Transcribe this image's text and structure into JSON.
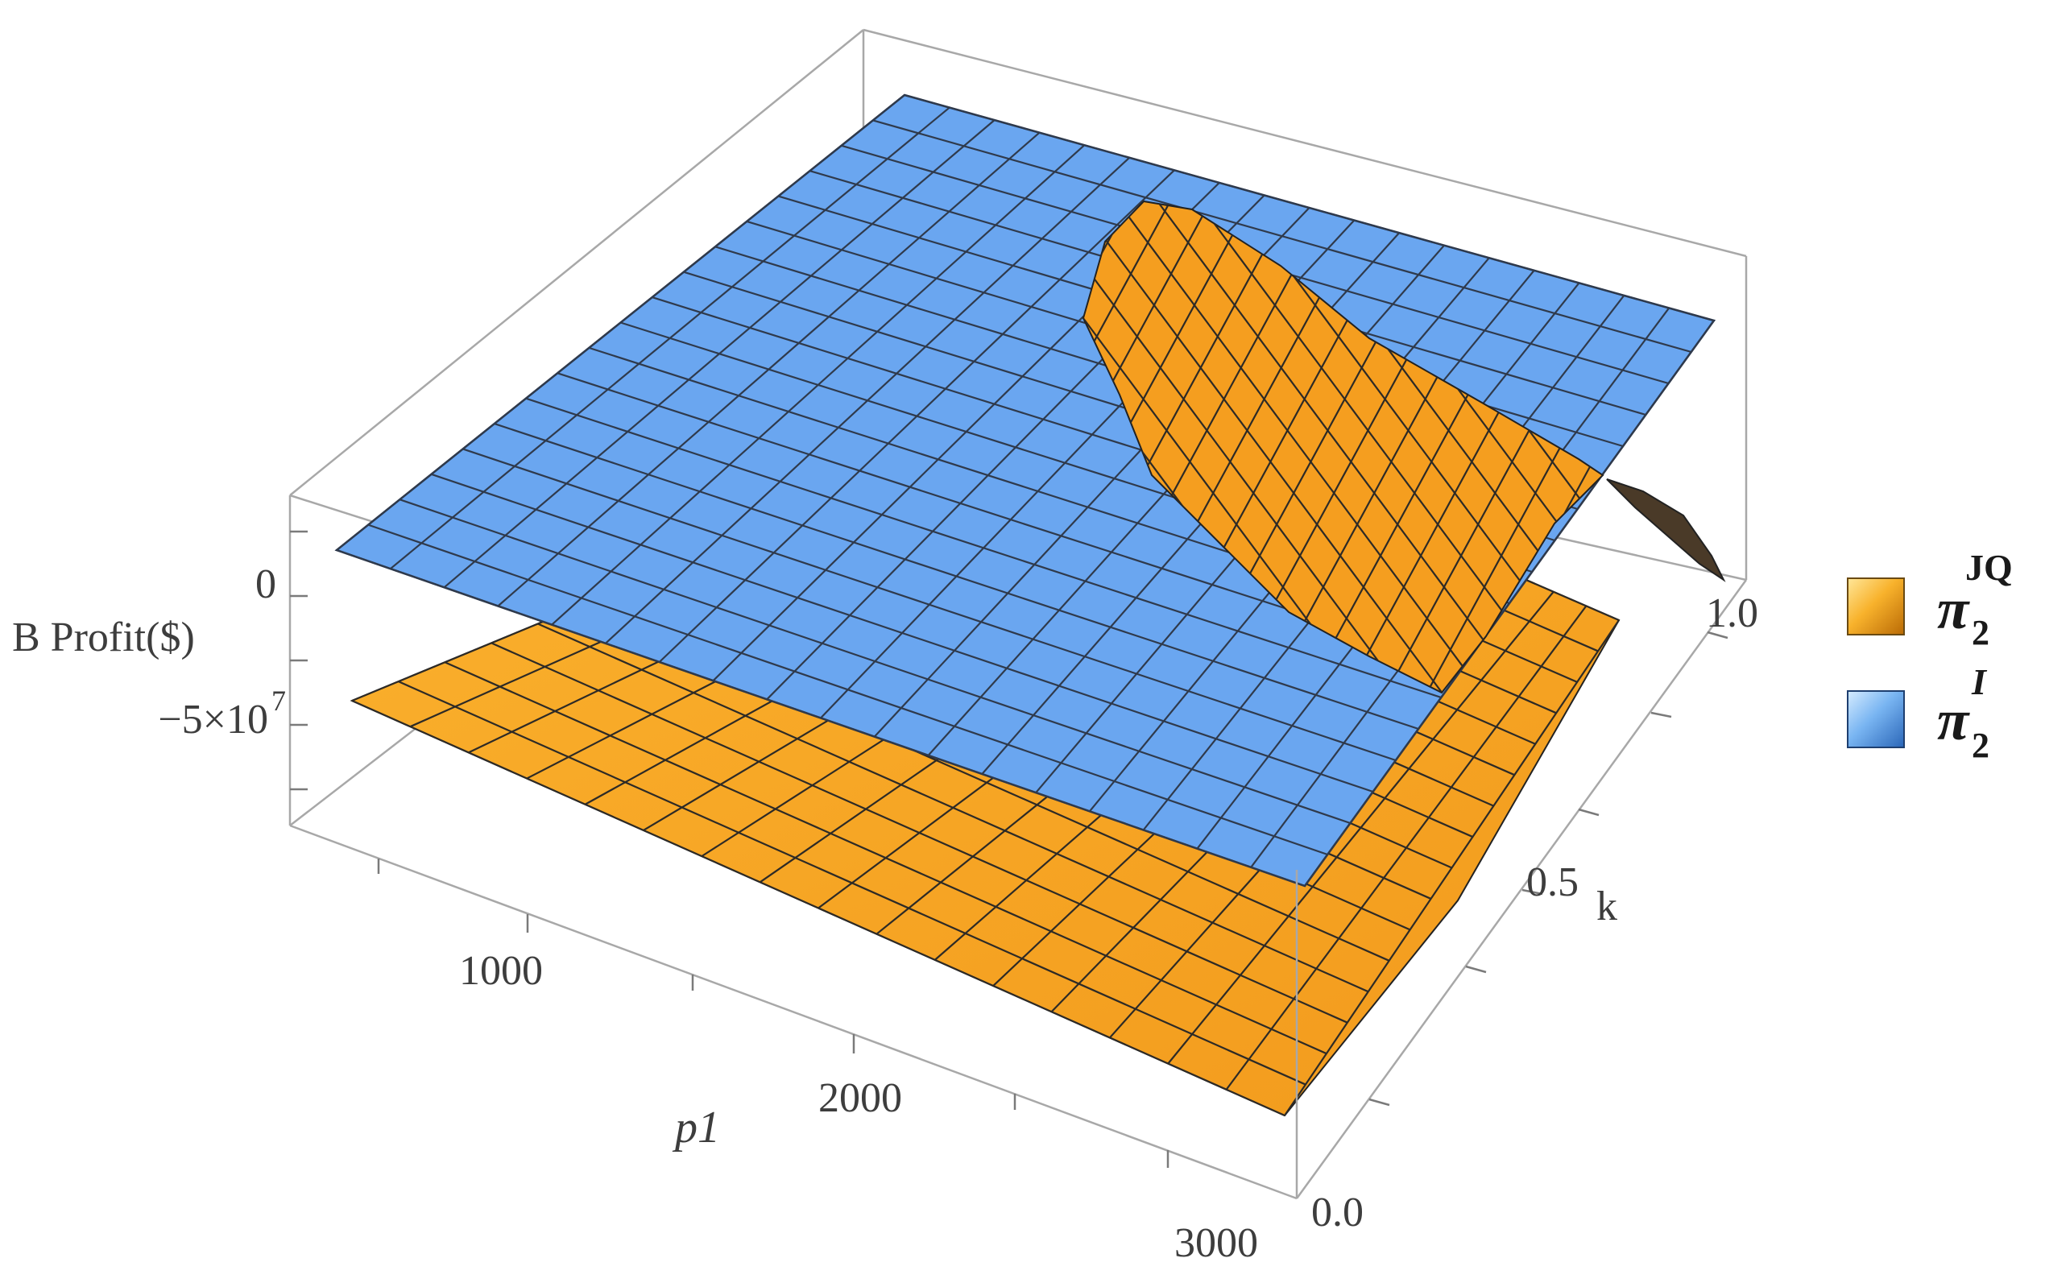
{
  "chart_data": {
    "type": "surface3d",
    "x_axis": {
      "label": "p1",
      "ticks": [
        "1000",
        "2000",
        "3000"
      ]
    },
    "y_axis": {
      "label": "k",
      "ticks": [
        "0.0",
        "0.5",
        "1.0"
      ]
    },
    "z_axis": {
      "label": "B Profit($)",
      "ticks": [
        "0",
        "−5×10⁷"
      ],
      "tick_mantissa": "−5×10",
      "tick_exponent": "7"
    },
    "series": [
      {
        "name": "π2JQ",
        "symbol": "π",
        "subscript": "2",
        "superscript": "JQ",
        "color": "#f5a623"
      },
      {
        "name": "π2I",
        "symbol": "π",
        "subscript": "2",
        "superscript": "I",
        "color": "#6aa6f0"
      }
    ],
    "legend_placement": "right"
  }
}
